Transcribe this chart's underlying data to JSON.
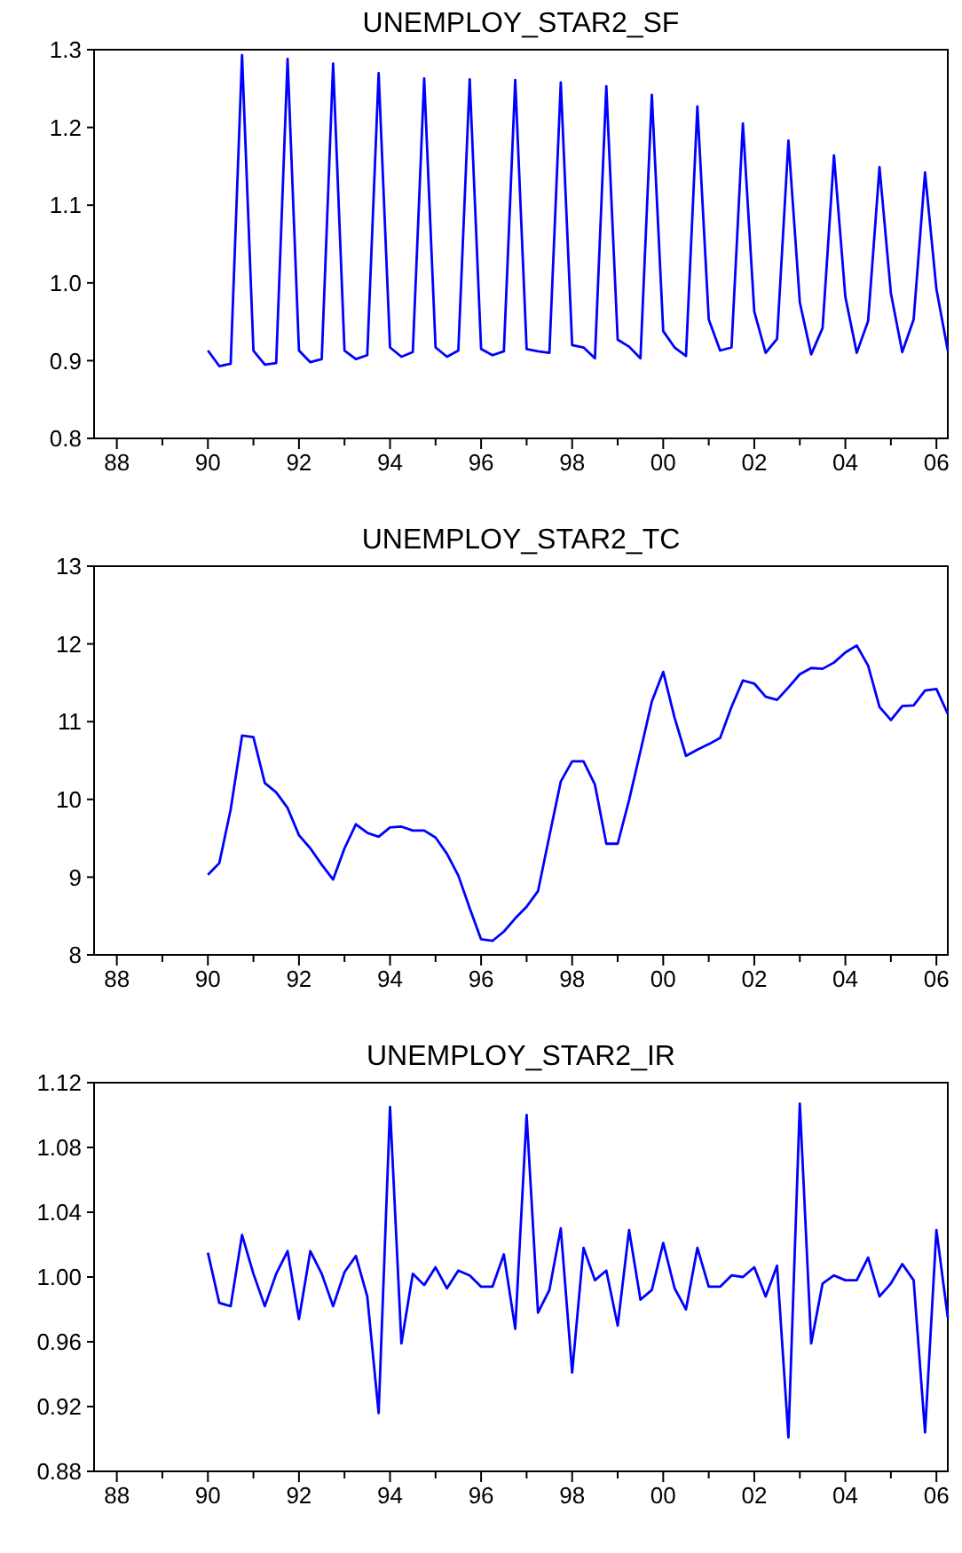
{
  "chart_data": [
    {
      "type": "line",
      "title": "UNEMPLOY_STAR2_SF",
      "color": "#0000ff",
      "x": [
        1990,
        1990.25,
        1990.5,
        1990.75,
        1991,
        1991.25,
        1991.5,
        1991.75,
        1992,
        1992.25,
        1992.5,
        1992.75,
        1993,
        1993.25,
        1993.5,
        1993.75,
        1994,
        1994.25,
        1994.5,
        1994.75,
        1995,
        1995.25,
        1995.5,
        1995.75,
        1996,
        1996.25,
        1996.5,
        1996.75,
        1997,
        1997.25,
        1997.5,
        1997.75,
        1998,
        1998.25,
        1998.5,
        1998.75,
        1999,
        1999.25,
        1999.5,
        1999.75,
        2000,
        2000.25,
        2000.5,
        2000.75,
        2001,
        2001.25,
        2001.5,
        2001.75,
        2002,
        2002.25,
        2002.5,
        2002.75,
        2003,
        2003.25,
        2003.5,
        2003.75,
        2004,
        2004.25,
        2004.5,
        2004.75,
        2005,
        2005.25,
        2005.5,
        2005.75,
        2006,
        2006.25
      ],
      "values": [
        0.913,
        0.893,
        0.896,
        1.293,
        0.913,
        0.895,
        0.897,
        1.288,
        0.913,
        0.898,
        0.902,
        1.282,
        0.913,
        0.902,
        0.907,
        1.27,
        0.917,
        0.905,
        0.911,
        1.263,
        0.917,
        0.905,
        0.913,
        1.262,
        0.915,
        0.907,
        0.912,
        1.261,
        0.915,
        0.912,
        0.91,
        1.258,
        0.92,
        0.917,
        0.903,
        1.253,
        0.927,
        0.918,
        0.903,
        1.242,
        0.938,
        0.917,
        0.906,
        1.227,
        0.953,
        0.913,
        0.917,
        1.205,
        0.963,
        0.91,
        0.928,
        1.183,
        0.975,
        0.908,
        0.942,
        1.164,
        0.982,
        0.91,
        0.951,
        1.149,
        0.987,
        0.911,
        0.953,
        1.142,
        0.992,
        0.913
      ],
      "xlim": [
        1987.5,
        2006.25
      ],
      "xticks": [
        {
          "value": 1988,
          "label": "88"
        },
        {
          "value": 1989,
          "label": null
        },
        {
          "value": 1990,
          "label": "90"
        },
        {
          "value": 1991,
          "label": null
        },
        {
          "value": 1992,
          "label": "92"
        },
        {
          "value": 1993,
          "label": null
        },
        {
          "value": 1994,
          "label": "94"
        },
        {
          "value": 1995,
          "label": null
        },
        {
          "value": 1996,
          "label": "96"
        },
        {
          "value": 1997,
          "label": null
        },
        {
          "value": 1998,
          "label": "98"
        },
        {
          "value": 1999,
          "label": null
        },
        {
          "value": 2000,
          "label": "00"
        },
        {
          "value": 2001,
          "label": null
        },
        {
          "value": 2002,
          "label": "02"
        },
        {
          "value": 2003,
          "label": null
        },
        {
          "value": 2004,
          "label": "04"
        },
        {
          "value": 2005,
          "label": null
        },
        {
          "value": 2006,
          "label": "06"
        }
      ],
      "ylim": [
        0.8,
        1.3
      ],
      "yticks": [
        0.8,
        0.9,
        {
          "value": 1,
          "label": "1.0"
        },
        1.1,
        1.2,
        1.3
      ]
    },
    {
      "type": "line",
      "title": "UNEMPLOY_STAR2_TC",
      "color": "#0000ff",
      "x": [
        1990,
        1990.25,
        1990.5,
        1990.75,
        1991,
        1991.25,
        1991.5,
        1991.75,
        1992,
        1992.25,
        1992.5,
        1992.75,
        1993,
        1993.25,
        1993.5,
        1993.75,
        1994,
        1994.25,
        1994.5,
        1994.75,
        1995,
        1995.25,
        1995.5,
        1995.75,
        1996,
        1996.25,
        1996.5,
        1996.75,
        1997,
        1997.25,
        1997.5,
        1997.75,
        1998,
        1998.25,
        1998.5,
        1998.75,
        1999,
        1999.25,
        1999.5,
        1999.75,
        2000,
        2000.25,
        2000.5,
        2000.75,
        2001,
        2001.25,
        2001.5,
        2001.75,
        2002,
        2002.25,
        2002.5,
        2002.75,
        2003,
        2003.25,
        2003.5,
        2003.75,
        2004,
        2004.25,
        2004.5,
        2004.75,
        2005,
        2005.25,
        2005.5,
        2005.75,
        2006,
        2006.25
      ],
      "values": [
        9.03,
        9.18,
        9.87,
        10.82,
        10.8,
        10.21,
        10.09,
        9.89,
        9.54,
        9.37,
        9.16,
        8.97,
        9.37,
        9.68,
        9.57,
        9.52,
        9.64,
        9.65,
        9.6,
        9.6,
        9.51,
        9.3,
        9.02,
        8.6,
        8.2,
        8.18,
        8.3,
        8.47,
        8.62,
        8.82,
        9.53,
        10.23,
        10.49,
        10.49,
        10.19,
        9.43,
        9.43,
        9.99,
        10.62,
        11.26,
        11.64,
        11.05,
        10.56,
        10.64,
        10.71,
        10.79,
        11.19,
        11.53,
        11.49,
        11.32,
        11.28,
        11.44,
        11.61,
        11.69,
        11.68,
        11.76,
        11.89,
        11.98,
        11.72,
        11.19,
        11.02,
        11.2,
        11.21,
        11.4,
        11.42,
        11.1
      ],
      "xlim": [
        1987.5,
        2006.25
      ],
      "xticks": [
        {
          "value": 1988,
          "label": "88"
        },
        {
          "value": 1989,
          "label": null
        },
        {
          "value": 1990,
          "label": "90"
        },
        {
          "value": 1991,
          "label": null
        },
        {
          "value": 1992,
          "label": "92"
        },
        {
          "value": 1993,
          "label": null
        },
        {
          "value": 1994,
          "label": "94"
        },
        {
          "value": 1995,
          "label": null
        },
        {
          "value": 1996,
          "label": "96"
        },
        {
          "value": 1997,
          "label": null
        },
        {
          "value": 1998,
          "label": "98"
        },
        {
          "value": 1999,
          "label": null
        },
        {
          "value": 2000,
          "label": "00"
        },
        {
          "value": 2001,
          "label": null
        },
        {
          "value": 2002,
          "label": "02"
        },
        {
          "value": 2003,
          "label": null
        },
        {
          "value": 2004,
          "label": "04"
        },
        {
          "value": 2005,
          "label": null
        },
        {
          "value": 2006,
          "label": "06"
        }
      ],
      "ylim": [
        8,
        13
      ],
      "yticks": [
        8,
        9,
        10,
        11,
        12,
        13
      ]
    },
    {
      "type": "line",
      "title": "UNEMPLOY_STAR2_IR",
      "color": "#0000ff",
      "x": [
        1990,
        1990.25,
        1990.5,
        1990.75,
        1991,
        1991.25,
        1991.5,
        1991.75,
        1992,
        1992.25,
        1992.5,
        1992.75,
        1993,
        1993.25,
        1993.5,
        1993.75,
        1994,
        1994.25,
        1994.5,
        1994.75,
        1995,
        1995.25,
        1995.5,
        1995.75,
        1996,
        1996.25,
        1996.5,
        1996.75,
        1997,
        1997.25,
        1997.5,
        1997.75,
        1998,
        1998.25,
        1998.5,
        1998.75,
        1999,
        1999.25,
        1999.5,
        1999.75,
        2000,
        2000.25,
        2000.5,
        2000.75,
        2001,
        2001.25,
        2001.5,
        2001.75,
        2002,
        2002.25,
        2002.5,
        2002.75,
        2003,
        2003.25,
        2003.5,
        2003.75,
        2004,
        2004.25,
        2004.5,
        2004.75,
        2005,
        2005.25,
        2005.5,
        2005.75,
        2006,
        2006.25
      ],
      "values": [
        1.015,
        0.984,
        0.982,
        1.026,
        1.002,
        0.982,
        1.002,
        1.016,
        0.974,
        1.016,
        1.002,
        0.982,
        1.003,
        1.013,
        0.988,
        0.916,
        1.105,
        0.959,
        1.002,
        0.995,
        1.006,
        0.993,
        1.004,
        1.001,
        0.994,
        0.994,
        1.014,
        0.968,
        1.1,
        0.978,
        0.992,
        1.03,
        0.941,
        1.018,
        0.998,
        1.004,
        0.97,
        1.029,
        0.986,
        0.992,
        1.021,
        0.993,
        0.98,
        1.018,
        0.994,
        0.994,
        1.001,
        1,
        1.006,
        0.988,
        1.007,
        0.901,
        1.107,
        0.959,
        0.996,
        1.001,
        0.998,
        0.998,
        1.012,
        0.988,
        0.996,
        1.008,
        0.998,
        0.904,
        1.029,
        0.975
      ],
      "xlim": [
        1987.5,
        2006.25
      ],
      "xticks": [
        {
          "value": 1988,
          "label": "88"
        },
        {
          "value": 1989,
          "label": null
        },
        {
          "value": 1990,
          "label": "90"
        },
        {
          "value": 1991,
          "label": null
        },
        {
          "value": 1992,
          "label": "92"
        },
        {
          "value": 1993,
          "label": null
        },
        {
          "value": 1994,
          "label": "94"
        },
        {
          "value": 1995,
          "label": null
        },
        {
          "value": 1996,
          "label": "96"
        },
        {
          "value": 1997,
          "label": null
        },
        {
          "value": 1998,
          "label": "98"
        },
        {
          "value": 1999,
          "label": null
        },
        {
          "value": 2000,
          "label": "00"
        },
        {
          "value": 2001,
          "label": null
        },
        {
          "value": 2002,
          "label": "02"
        },
        {
          "value": 2003,
          "label": null
        },
        {
          "value": 2004,
          "label": "04"
        },
        {
          "value": 2005,
          "label": null
        },
        {
          "value": 2006,
          "label": "06"
        }
      ],
      "ylim": [
        0.88,
        1.12
      ],
      "yticks": [
        0.88,
        0.92,
        0.96,
        {
          "value": 1,
          "label": "1.00"
        },
        1.04,
        1.08,
        1.12
      ]
    }
  ]
}
